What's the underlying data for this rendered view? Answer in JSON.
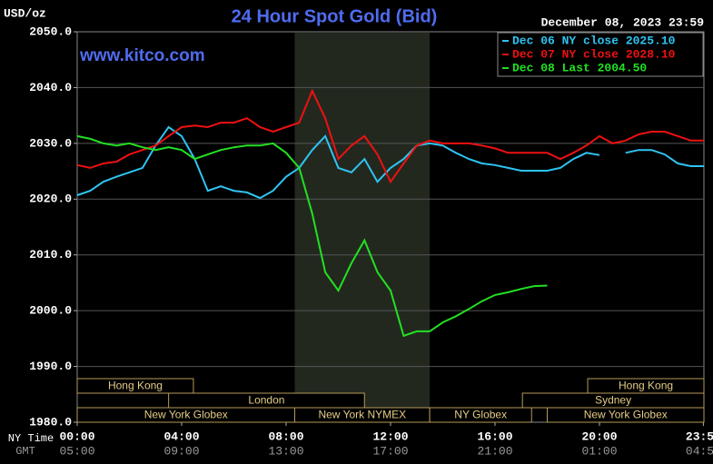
{
  "chart_data": {
    "type": "line",
    "title": "24 Hour Spot Gold (Bid)",
    "unit_label": "USD/oz",
    "timestamp": "December 08, 2023 23:59",
    "watermark": "www.kitco.com",
    "x_row_label": "NY Time",
    "x2_row_label": "GMT",
    "xlim": [
      0,
      24
    ],
    "xticks": [
      {
        "value": 0,
        "label": "00:00"
      },
      {
        "value": 4,
        "label": "04:00"
      },
      {
        "value": 8,
        "label": "08:00"
      },
      {
        "value": 12,
        "label": "12:00"
      },
      {
        "value": 16,
        "label": "16:00"
      },
      {
        "value": 20,
        "label": "20:00"
      },
      {
        "value": 23.98,
        "label": "23:59"
      }
    ],
    "x2tick_labels": [
      "05:00",
      "09:00",
      "13:00",
      "17:00",
      "21:00",
      "01:00",
      "04:59"
    ],
    "ylim": [
      1980,
      2050
    ],
    "yticks": [
      {
        "value": 1980,
        "label": "1980.0"
      },
      {
        "value": 1990,
        "label": "1990.0"
      },
      {
        "value": 2000,
        "label": "2000.0"
      },
      {
        "value": 2010,
        "label": "2010.0"
      },
      {
        "value": 2020,
        "label": "2020.0"
      },
      {
        "value": 2030,
        "label": "2030.0"
      },
      {
        "value": 2040,
        "label": "2040.0"
      },
      {
        "value": 2050,
        "label": "2050.0"
      }
    ],
    "grid": true,
    "shaded_region": [
      8.33,
      13.5
    ],
    "sessions": [
      [
        {
          "label": "Hong Kong",
          "start": 0,
          "end": 4.45
        },
        {
          "label": "Hong Kong",
          "start": 19.55,
          "end": 24
        }
      ],
      [
        {
          "label": "London",
          "start": 3.5,
          "end": 11
        },
        {
          "label": "Sydney",
          "start": 17.05,
          "end": 24
        }
      ],
      [
        {
          "label": "New York Globex",
          "start": 0,
          "end": 8.33
        },
        {
          "label": "New York NYMEX",
          "start": 8.33,
          "end": 13.5
        },
        {
          "label": "NY Globex",
          "start": 13.5,
          "end": 17.4
        },
        {
          "label": "New York Globex",
          "start": 18,
          "end": 24
        }
      ]
    ],
    "x": [
      0,
      0.5,
      1,
      1.5,
      2,
      2.5,
      3,
      3.5,
      4,
      4.5,
      5,
      5.5,
      6,
      6.5,
      7,
      7.5,
      8,
      8.5,
      9,
      9.5,
      10,
      10.5,
      11,
      11.5,
      12,
      12.5,
      13,
      13.5,
      14,
      14.5,
      15,
      15.5,
      16,
      16.5,
      17,
      17.5,
      18,
      18.5,
      19,
      19.5,
      20,
      20.5,
      21,
      21.5,
      22,
      22.5,
      23,
      23.5,
      24
    ],
    "series": [
      {
        "name": "Dec 06 NY close 2025.10",
        "color": "#2ec4f2",
        "values": [
          2020.7,
          2021.5,
          2023.1,
          2024,
          2024.8,
          2025.6,
          2029.6,
          2032.9,
          2031.3,
          2027.2,
          2021.5,
          2022.3,
          2021.5,
          2021.2,
          2020.2,
          2021.5,
          2024,
          2025.6,
          2028.8,
          2031.3,
          2025.6,
          2024.8,
          2027.2,
          2023.1,
          2025.6,
          2027.2,
          2029.6,
          2030,
          2029.6,
          2028.3,
          2027.2,
          2026.4,
          2026.1,
          2025.6,
          2025.1,
          2025.1,
          2025.1,
          2025.6,
          2027.2,
          2028.3,
          2027.9,
          null,
          2028.3,
          2028.8,
          2028.8,
          2028,
          2026.4,
          2025.9,
          2025.9
        ]
      },
      {
        "name": "Dec 07 NY close 2028.10",
        "color": "#ee1111",
        "values": [
          2026.1,
          2025.6,
          2026.4,
          2026.7,
          2028,
          2028.8,
          2029.6,
          2031.3,
          2032.9,
          2033.2,
          2032.9,
          2033.7,
          2033.7,
          2034.5,
          2032.9,
          2032.1,
          2032.9,
          2033.7,
          2039.4,
          2034.5,
          2027.2,
          2029.6,
          2031.3,
          2028,
          2023.1,
          2026.4,
          2029.6,
          2030.5,
          2030,
          2030,
          2030,
          2029.6,
          2029.1,
          2028.3,
          2028.3,
          2028.3,
          2028.3,
          2027.2,
          2028.3,
          2029.6,
          2031.3,
          2030,
          2030.5,
          2031.6,
          2032.1,
          2032.1,
          2031.3,
          2030.5,
          2030.5
        ]
      },
      {
        "name": "Dec 08 Last 2004.50",
        "color": "#22e022",
        "values": [
          2031.3,
          2030.8,
          2030,
          2029.6,
          2030,
          2029.3,
          2028.8,
          2029.3,
          2028.8,
          2027.2,
          2028,
          2028.8,
          2029.3,
          2029.6,
          2029.6,
          2030,
          2028.3,
          2025.6,
          2017.4,
          2006.9,
          2003.6,
          2008.5,
          2012.6,
          2006.9,
          2003.6,
          1995.5,
          1996.3,
          1996.3,
          1997.9,
          1999,
          2000.3,
          2001.7,
          2002.8,
          2003.3,
          2003.9,
          2004.4,
          2004.5,
          null,
          null,
          null,
          null,
          null,
          null,
          null,
          null,
          null,
          null,
          null,
          null
        ]
      }
    ]
  }
}
